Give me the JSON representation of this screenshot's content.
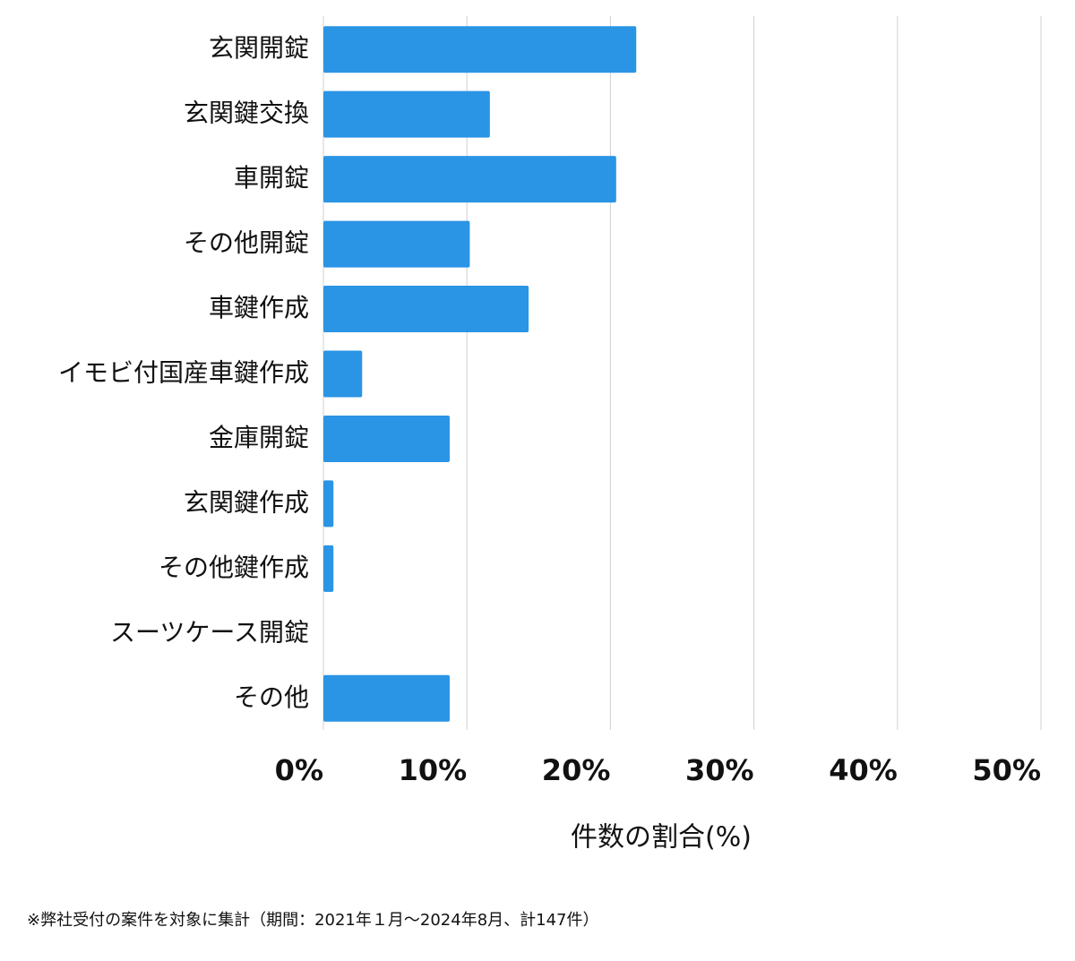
{
  "chart_data": {
    "type": "barh",
    "categories": [
      "玄関開錠",
      "玄関鍵交換",
      "車開錠",
      "その他開錠",
      "車鍵作成",
      "イモビ付国産車鍵作成",
      "金庫開錠",
      "玄関鍵作成",
      "その他鍵作成",
      "スーツケース開錠",
      "その他"
    ],
    "values": [
      21.8,
      11.6,
      20.4,
      10.2,
      14.3,
      2.7,
      8.8,
      0.7,
      0.7,
      0,
      8.8
    ],
    "color": "#2a94e5",
    "xlim": [
      0,
      50
    ],
    "xticks": [
      {
        "value": 0,
        "label": "0%"
      },
      {
        "value": 10,
        "label": "10%"
      },
      {
        "value": 20,
        "label": "20%"
      },
      {
        "value": 30,
        "label": "30%"
      },
      {
        "value": 40,
        "label": "40%"
      },
      {
        "value": 50,
        "label": "50%"
      }
    ],
    "grid": true,
    "xlabel": "件数の割合(%)",
    "footnote": "※弊社受付の案件を対象に集計（期間：2021年１月〜2024年8月、計147件）"
  }
}
